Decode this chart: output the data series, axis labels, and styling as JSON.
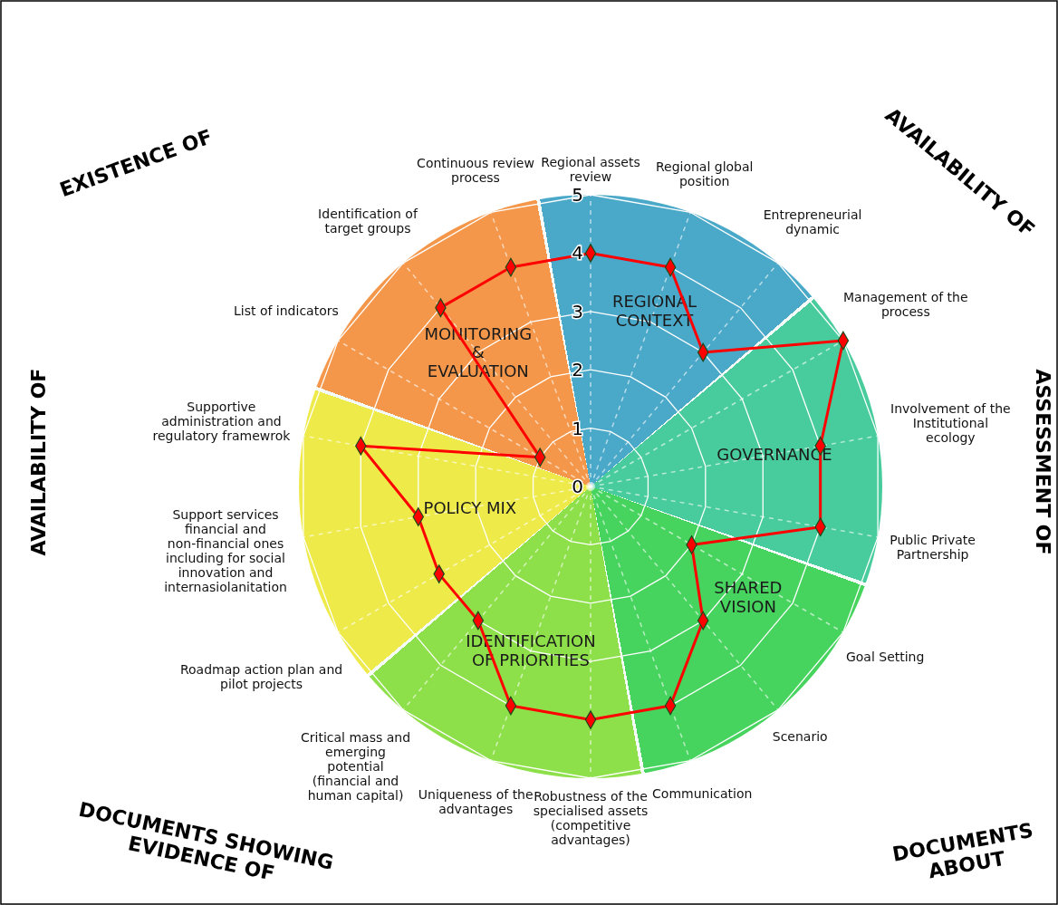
{
  "chart_data": {
    "type": "radar",
    "categories": [
      "Regional assets review",
      "Regional global position",
      "Entrepreneurial dynamic",
      "Management of the process",
      "Involvement of the Institutional ecology",
      "Public Private Partnership",
      "Goal Setting",
      "Scenario",
      "Communication",
      "Robustness of the specialised assets (competitive advantages)",
      "Uniqueness of the advantages",
      "Critical mass and emerging potential (financial and human capital)",
      "Roadmap action plan and pilot projects",
      "Support services financial and non-financial ones including for social innovation and internasiolanitation",
      "Supportive administration and regulatory framewrok",
      "List of indicators",
      "Identification of target groups",
      "Continuous review process"
    ],
    "series": [
      {
        "color": "#ff0000",
        "values": [
          4,
          4,
          3,
          5,
          4,
          4,
          2,
          3,
          4,
          4,
          4,
          3,
          3,
          3,
          4,
          1,
          4,
          4
        ]
      }
    ],
    "ylim": [
      0,
      5
    ],
    "yticks": [
      0,
      1,
      2,
      3,
      4,
      5
    ],
    "grid": true,
    "marker": "diamond",
    "line_style": "solid",
    "annotations": [
      "EXISTENCE OF",
      "AVAILABILITY OF",
      "AVAILABILITY OF",
      "ASSESSMENT OF",
      "DOCUMENTS SHOWING EVIDENCE OF",
      "DOCUMENTS ABOUT",
      "REGIONAL CONTEXT",
      "GOVERNANCE",
      "SHARED VISION",
      "IDENTIFICATION OF PRIORITIES",
      "POLICY MIX",
      "MONITORING & EVALUATION"
    ]
  }
}
